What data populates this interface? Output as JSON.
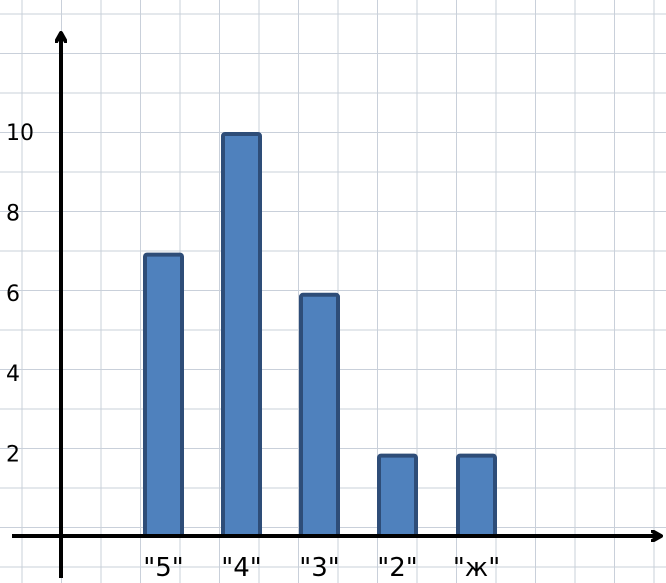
{
  "chart_data": {
    "type": "bar",
    "categories": [
      "\"5\"",
      "\"4\"",
      "\"3\"",
      "\"2\"",
      "\"ж\""
    ],
    "values": [
      7,
      10,
      6,
      2,
      2
    ],
    "y_ticks": [
      "2",
      "4",
      "6",
      "8",
      "10"
    ],
    "ylim": [
      0,
      12
    ],
    "grid": true,
    "bar_fill": "#4f81bd",
    "bar_stroke": "#2e4d78",
    "grid_color": "#c9d0da",
    "axis_color": "#000000"
  }
}
